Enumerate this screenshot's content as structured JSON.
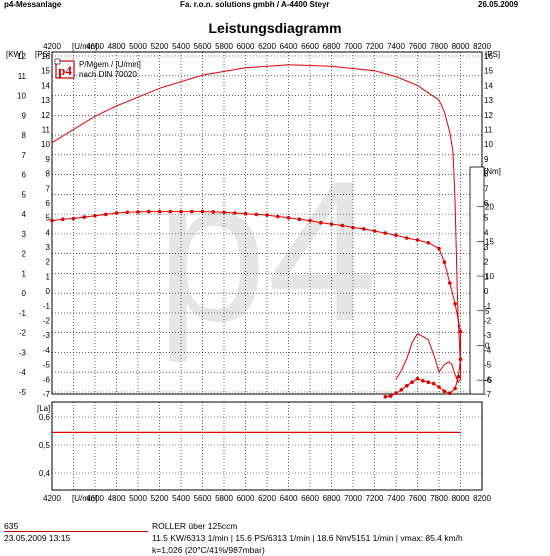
{
  "header": {
    "left": "p4-Messanlage",
    "center": "Fa. r.o.n. solutions gmbh / A-4400 Steyr",
    "right": "26.05.2009"
  },
  "title": "Leistungsdiagramm",
  "watermark": "p4",
  "logo": {
    "text": "p4",
    "color": "#cc0000"
  },
  "legend": {
    "line1": "P/Mgem / [U/min]",
    "line2": "nach DIN 70020"
  },
  "axis_labels": {
    "left": "[KW]",
    "left2": "[PS]",
    "right": "[PS]",
    "torque": "[Nm]",
    "x_unit": "[U/min]",
    "lambda": "[La]"
  },
  "colors": {
    "curve": "#e00000",
    "grid": "#000000",
    "watermark": "#e6e6e6"
  },
  "chart_data": [
    {
      "type": "line",
      "title": "Leistungsdiagramm",
      "xlabel": "[U/min]",
      "ylabel": "[KW] / [PS]",
      "xlim": [
        4200,
        8200
      ],
      "ylim_kw": [
        -5,
        12
      ],
      "ylim_ps": [
        -7,
        16
      ],
      "ylim_nm": [
        -7,
        24
      ],
      "x_ticks": [
        4200,
        4400,
        4600,
        4800,
        5000,
        5200,
        5400,
        5600,
        5800,
        6000,
        6200,
        6400,
        6600,
        6800,
        7000,
        7200,
        7400,
        7600,
        7800,
        8000,
        8200
      ],
      "x_tick_labels": [
        "4200",
        "",
        "4600",
        "4800",
        "5000",
        "5200",
        "5400",
        "5600",
        "5800",
        "6000",
        "6200",
        "6400",
        "6600",
        "6800",
        "7000",
        "7200",
        "7400",
        "7600",
        "7800",
        "8000",
        "8200"
      ],
      "y_ticks_kw": [
        12,
        11,
        10,
        9,
        8,
        7,
        6,
        5,
        4,
        3,
        2,
        1,
        0,
        -1,
        -2,
        -3,
        -4,
        -5
      ],
      "y_ticks_ps": [
        16,
        15,
        14,
        13,
        12,
        11,
        10,
        9,
        8,
        7,
        6,
        5,
        4,
        3,
        2,
        1,
        0,
        -1,
        -2,
        -3,
        -4,
        -5,
        -6,
        -7
      ],
      "y_ticks_nm": [
        20,
        15,
        10,
        5,
        0,
        -5
      ],
      "grid": true,
      "series": [
        {
          "name": "P/Mgem",
          "axis": "ps",
          "markers": false,
          "x": [
            4200,
            4600,
            4800,
            5200,
            5600,
            6000,
            6400,
            6800,
            7200,
            7400,
            7600,
            7800,
            7850,
            7900,
            7930,
            7950,
            7960,
            7970,
            7980,
            7990,
            8000,
            8000,
            7980,
            7950,
            7920,
            7890,
            7850,
            7820,
            7800,
            7780,
            7750,
            7700,
            7600,
            7550,
            7500,
            7450,
            7400
          ],
          "y": [
            10.1,
            11.9,
            12.6,
            13.8,
            14.7,
            15.2,
            15.4,
            15.3,
            15.0,
            14.6,
            14.0,
            13.0,
            12.2,
            10.8,
            9.5,
            6.0,
            3.0,
            0.0,
            -2.0,
            -3.5,
            -5.0,
            -6.0,
            -6.2,
            -5.7,
            -5.0,
            -4.8,
            -5.0,
            -5.3,
            -5.5,
            -5.0,
            -4.3,
            -3.3,
            -2.9,
            -3.5,
            -4.6,
            -5.4,
            -6.0
          ]
        },
        {
          "name": "",
          "axis": "nm",
          "markers": true,
          "x": [
            4200,
            4300,
            4400,
            4500,
            4600,
            4700,
            4800,
            4900,
            5000,
            5100,
            5200,
            5300,
            5400,
            5500,
            5600,
            5700,
            5800,
            5900,
            6000,
            6100,
            6200,
            6300,
            6400,
            6500,
            6600,
            6700,
            6800,
            6900,
            7000,
            7100,
            7200,
            7300,
            7400,
            7500,
            7600,
            7700,
            7800,
            7850,
            7900,
            7950,
            8000,
            8000,
            7980,
            7950,
            7900,
            7850,
            7800,
            7750,
            7700,
            7650,
            7600,
            7550,
            7500,
            7450,
            7400,
            7350,
            7300
          ],
          "y": [
            18.0,
            18.2,
            18.3,
            18.5,
            18.7,
            18.9,
            19.1,
            19.2,
            19.25,
            19.3,
            19.3,
            19.3,
            19.3,
            19.3,
            19.3,
            19.25,
            19.2,
            19.1,
            19.0,
            18.9,
            18.8,
            18.6,
            18.4,
            18.2,
            18.0,
            17.7,
            17.5,
            17.3,
            17.0,
            16.8,
            16.5,
            16.2,
            15.9,
            15.5,
            15.2,
            14.8,
            14.0,
            12.0,
            9.0,
            6.0,
            2.0,
            -2.0,
            -4.5,
            -6.2,
            -6.9,
            -6.6,
            -6.0,
            -5.5,
            -5.3,
            -5.1,
            -4.8,
            -5.3,
            -5.8,
            -6.4,
            -6.9,
            -7.3,
            -7.4
          ]
        }
      ]
    },
    {
      "type": "line",
      "ylabel": "[La]",
      "xlim": [
        4200,
        8200
      ],
      "ylim": [
        0.4,
        0.65
      ],
      "y_ticks": [
        "0,6",
        "0,5",
        "0,4"
      ],
      "y_tick_values": [
        0.6,
        0.5,
        0.4
      ],
      "grid": true,
      "series": [
        {
          "name": "",
          "x": [
            4200,
            8000
          ],
          "y": [
            0.545,
            0.545
          ]
        }
      ]
    }
  ],
  "footer": {
    "number": "635",
    "date": "23.05.2009  13:15",
    "vehicle": "ROLLER über 125ccm",
    "stats": "11.5 KW/6313 1/min   |  15.6 PS/6313 1/min   |  18.6 Nm/5151 1/min  | vmax: 85.4 km/h",
    "conditions": "k=1,026 (20°C/41%/987mbar)"
  }
}
